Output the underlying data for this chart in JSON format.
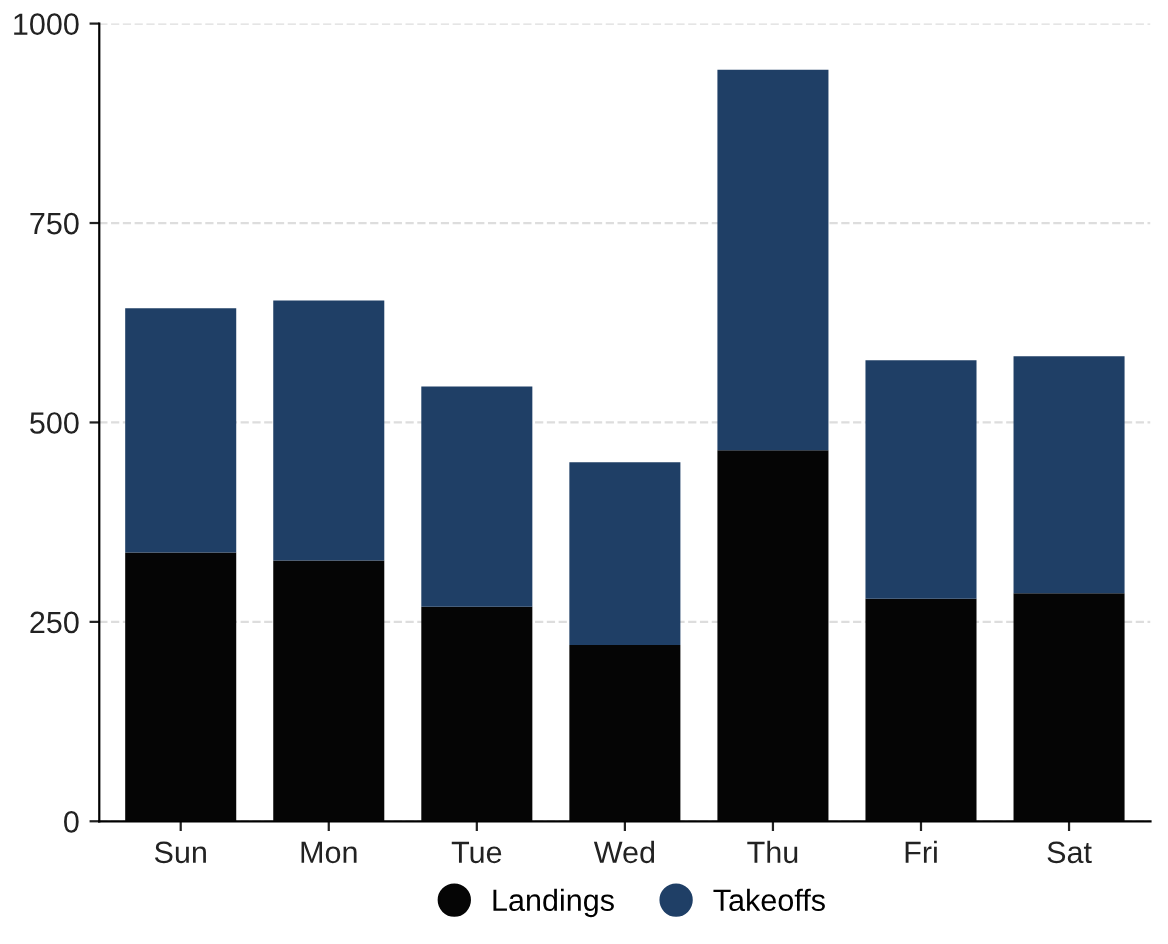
{
  "chart_data": {
    "type": "bar",
    "stacked": true,
    "categories": [
      "Sun",
      "Mon",
      "Tue",
      "Wed",
      "Thu",
      "Fri",
      "Sat"
    ],
    "series": [
      {
        "name": "Landings",
        "color": "#050505",
        "values": [
          337,
          327,
          269,
          221,
          465,
          279,
          286
        ]
      },
      {
        "name": "Takeoffs",
        "color": "#1f3f66",
        "values": [
          306,
          326,
          276,
          229,
          477,
          299,
          297
        ]
      }
    ],
    "ylim": [
      0,
      1000
    ],
    "yticks": [
      0,
      250,
      500,
      750,
      1000
    ],
    "grid": "y",
    "legend": "bottom"
  }
}
